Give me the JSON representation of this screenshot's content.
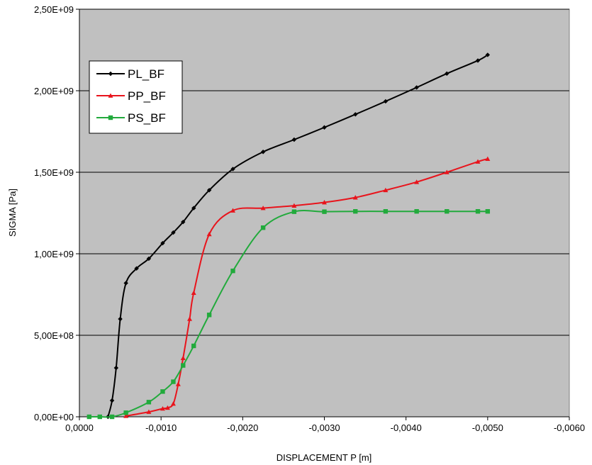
{
  "chart_data": {
    "type": "line",
    "xlabel": "DISPLACEMENT P [m]",
    "ylabel": "SIGMA [Pa]",
    "xlim": [
      0,
      -0.006
    ],
    "ylim": [
      0,
      2500000000
    ],
    "x_ticks": [
      0,
      -0.001,
      -0.002,
      -0.003,
      -0.004,
      -0.005,
      -0.006
    ],
    "x_tick_labels": [
      "0,0000",
      "-0,0010",
      "-0,0020",
      "-0,0030",
      "-0,0040",
      "-0,0050",
      "-0,0060"
    ],
    "y_ticks": [
      0,
      500000000,
      1000000000,
      1500000000,
      2000000000,
      2500000000
    ],
    "y_tick_labels": [
      "0,00E+00",
      "5,00E+08",
      "1,00E+09",
      "1,50E+09",
      "2,00E+09",
      "2,50E+09"
    ],
    "grid": "horizontal",
    "legend_position": "top-left",
    "series": [
      {
        "name": "PL_BF",
        "color": "#000000",
        "marker": "diamond",
        "points": [
          [
            -0.00035,
            0
          ],
          [
            -0.0004,
            100000000
          ],
          [
            -0.00045,
            300000000
          ],
          [
            -0.0005,
            600000000
          ],
          [
            -0.00057,
            820000000
          ],
          [
            -0.0007,
            910000000
          ],
          [
            -0.00085,
            970000000
          ],
          [
            -0.00102,
            1065000000
          ],
          [
            -0.00115,
            1130000000
          ],
          [
            -0.00127,
            1195000000
          ],
          [
            -0.0014,
            1280000000
          ],
          [
            -0.00159,
            1390000000
          ],
          [
            -0.00188,
            1520000000
          ],
          [
            -0.00225,
            1625000000
          ],
          [
            -0.00263,
            1700000000
          ],
          [
            -0.003,
            1775000000
          ],
          [
            -0.00338,
            1855000000
          ],
          [
            -0.00375,
            1935000000
          ],
          [
            -0.00413,
            2020000000
          ],
          [
            -0.0045,
            2105000000
          ],
          [
            -0.00488,
            2185000000
          ],
          [
            -0.005,
            2220000000
          ]
        ]
      },
      {
        "name": "PP_BF",
        "color": "#e8141c",
        "marker": "triangle",
        "points": [
          [
            -0.00057,
            5000000
          ],
          [
            -0.00085,
            30000000
          ],
          [
            -0.00102,
            50000000
          ],
          [
            -0.00108,
            55000000
          ],
          [
            -0.00115,
            80000000
          ],
          [
            -0.00121,
            200000000
          ],
          [
            -0.00127,
            360000000
          ],
          [
            -0.00135,
            600000000
          ],
          [
            -0.0014,
            760000000
          ],
          [
            -0.00159,
            1120000000
          ],
          [
            -0.00188,
            1265000000
          ],
          [
            -0.00225,
            1280000000
          ],
          [
            -0.00263,
            1295000000
          ],
          [
            -0.003,
            1315000000
          ],
          [
            -0.00338,
            1345000000
          ],
          [
            -0.00375,
            1390000000
          ],
          [
            -0.00413,
            1440000000
          ],
          [
            -0.0045,
            1500000000
          ],
          [
            -0.00488,
            1565000000
          ],
          [
            -0.005,
            1582000000
          ]
        ]
      },
      {
        "name": "PS_BF",
        "color": "#22aa3c",
        "marker": "square",
        "points": [
          [
            -0.00012,
            0
          ],
          [
            -0.00025,
            0
          ],
          [
            -0.0004,
            0
          ],
          [
            -0.00057,
            25000000
          ],
          [
            -0.00085,
            90000000
          ],
          [
            -0.00102,
            155000000
          ],
          [
            -0.00115,
            215000000
          ],
          [
            -0.00127,
            315000000
          ],
          [
            -0.0014,
            435000000
          ],
          [
            -0.00159,
            625000000
          ],
          [
            -0.00188,
            895000000
          ],
          [
            -0.00225,
            1160000000
          ],
          [
            -0.00263,
            1258000000
          ],
          [
            -0.003,
            1258000000
          ],
          [
            -0.00338,
            1260000000
          ],
          [
            -0.00375,
            1260000000
          ],
          [
            -0.00413,
            1260000000
          ],
          [
            -0.0045,
            1260000000
          ],
          [
            -0.00488,
            1260000000
          ],
          [
            -0.005,
            1260000000
          ]
        ]
      }
    ]
  }
}
